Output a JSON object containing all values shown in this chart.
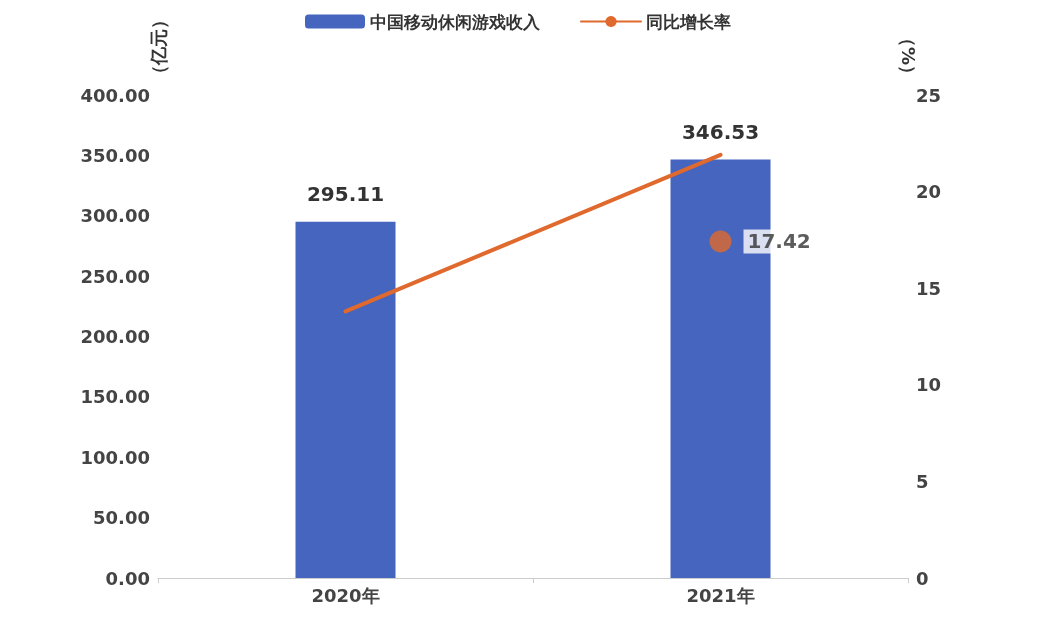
{
  "chart_data": {
    "type": "bar",
    "categories": [
      "2020年",
      "2021年"
    ],
    "ylabel": "（亿元）",
    "y2label": "（%）",
    "ylim": [
      0,
      400
    ],
    "yticks": [
      {
        "value": 0,
        "label": "0.00"
      },
      {
        "value": 50,
        "label": "50.00"
      },
      {
        "value": 100,
        "label": "100.00"
      },
      {
        "value": 150,
        "label": "150.00"
      },
      {
        "value": 200,
        "label": "200.00"
      },
      {
        "value": 250,
        "label": "250.00"
      },
      {
        "value": 300,
        "label": "300.00"
      },
      {
        "value": 350,
        "label": "350.00"
      },
      {
        "value": 400,
        "label": "400.00"
      }
    ],
    "y2lim": [
      0,
      25
    ],
    "y2ticks": [
      0,
      5,
      10,
      15,
      20,
      25
    ],
    "series": [
      {
        "name": "中国移动休闲游戏收入",
        "color": "#4565be",
        "values": [
          295.11,
          346.53
        ],
        "value_labels": [
          "295.11",
          "346.53"
        ]
      },
      {
        "name": "同比增长率",
        "type": "line",
        "axis": "y2",
        "color": "#e0692e",
        "values": [
          13.8,
          21.9
        ]
      },
      {
        "type": "scatter",
        "axis": "y2",
        "color": "#e0692e",
        "values": [
          null,
          17.42
        ],
        "value_labels": [
          null,
          "17.42"
        ]
      }
    ],
    "legend": "top",
    "grid": false
  }
}
